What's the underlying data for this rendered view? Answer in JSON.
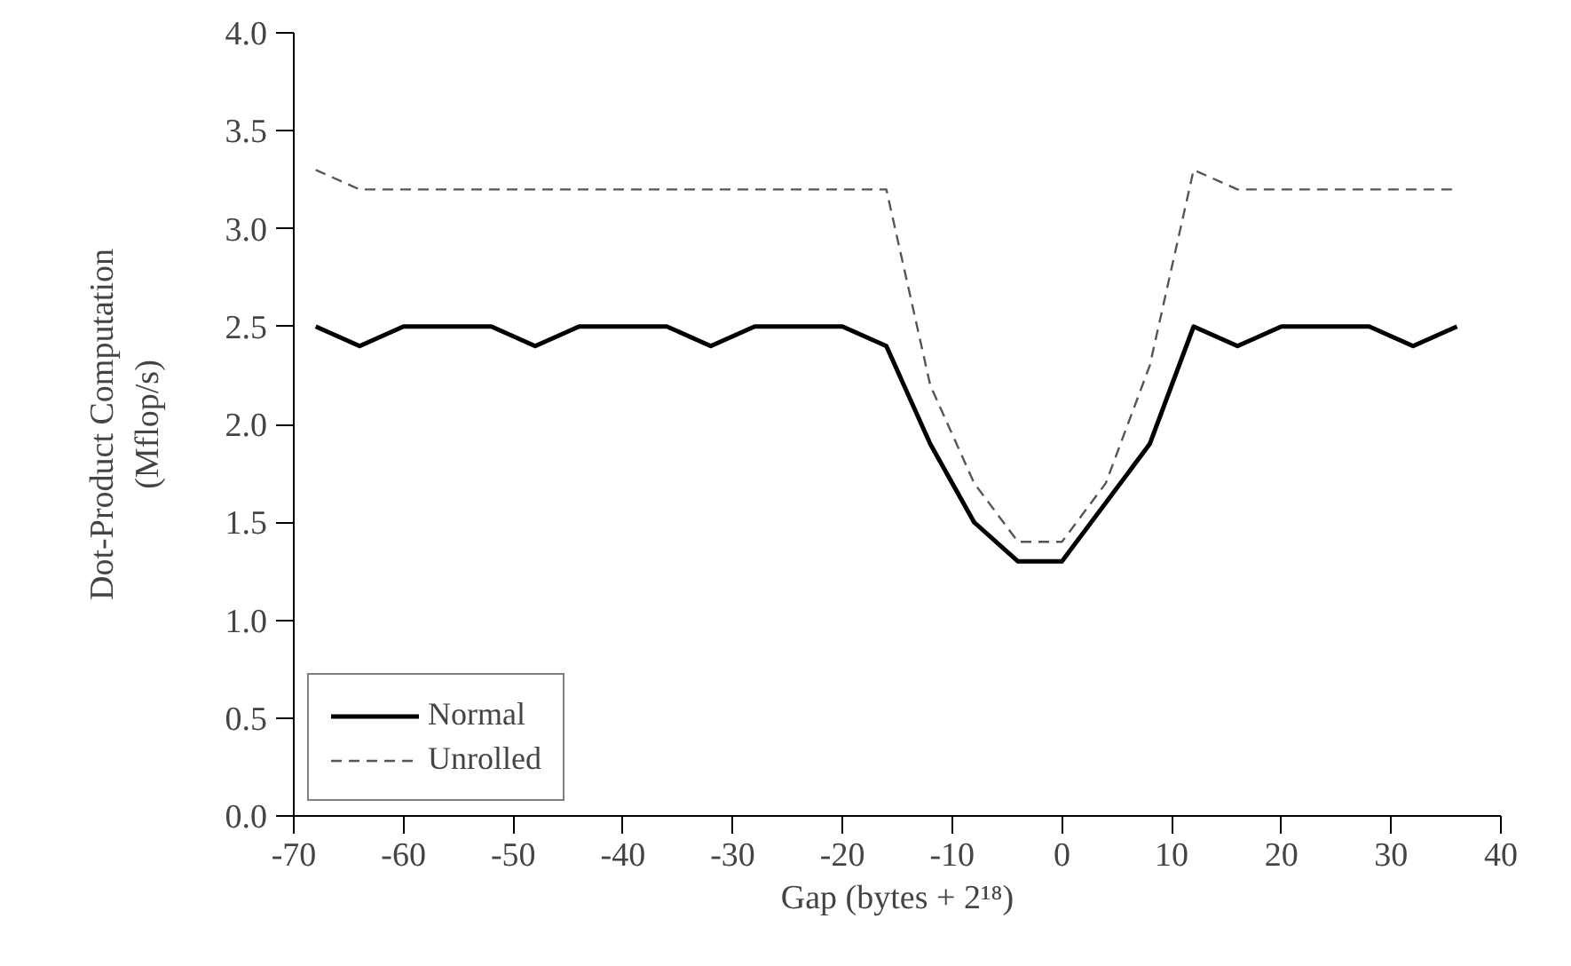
{
  "chart_data": {
    "type": "line",
    "xlabel": "Gap (bytes + 2¹⁸)",
    "ylabel": "Dot-Product Computation\n(Mflop/s)",
    "x": [
      -68,
      -64,
      -60,
      -56,
      -52,
      -48,
      -44,
      -40,
      -36,
      -32,
      -28,
      -24,
      -20,
      -16,
      -12,
      -8,
      -4,
      0,
      4,
      8,
      12,
      16,
      20,
      24,
      28,
      32,
      36
    ],
    "series": [
      {
        "name": "Normal",
        "color": "#000000",
        "line_style": "solid",
        "values": [
          2.5,
          2.4,
          2.5,
          2.5,
          2.5,
          2.4,
          2.5,
          2.5,
          2.5,
          2.4,
          2.5,
          2.5,
          2.5,
          2.4,
          1.9,
          1.5,
          1.3,
          1.3,
          1.6,
          1.9,
          2.5,
          2.4,
          2.5,
          2.5,
          2.5,
          2.4,
          2.5
        ]
      },
      {
        "name": "Unrolled",
        "color": "#555555",
        "line_style": "dashed",
        "values": [
          3.3,
          3.2,
          3.2,
          3.2,
          3.2,
          3.2,
          3.2,
          3.2,
          3.2,
          3.2,
          3.2,
          3.2,
          3.2,
          3.2,
          2.2,
          1.7,
          1.4,
          1.4,
          1.7,
          2.3,
          3.3,
          3.2,
          3.2,
          3.2,
          3.2,
          3.2,
          3.2
        ]
      }
    ],
    "xlim": [
      -70,
      40
    ],
    "ylim": [
      0,
      4
    ],
    "xticks": [
      -70,
      -60,
      -50,
      -40,
      -30,
      -20,
      -10,
      0,
      10,
      20,
      30,
      40
    ],
    "yticks": [
      {
        "value": 0,
        "label": "0.0"
      },
      {
        "value": 0.5,
        "label": "0.5"
      },
      {
        "value": 1,
        "label": "1.0"
      },
      {
        "value": 1.5,
        "label": "1.5"
      },
      {
        "value": 2,
        "label": "2.0"
      },
      {
        "value": 2.5,
        "label": "2.5"
      },
      {
        "value": 3,
        "label": "3.0"
      },
      {
        "value": 3.5,
        "label": "3.5"
      },
      {
        "value": 4,
        "label": "4.0"
      }
    ],
    "grid": false,
    "legend": "bottom left",
    "marker": "none"
  }
}
